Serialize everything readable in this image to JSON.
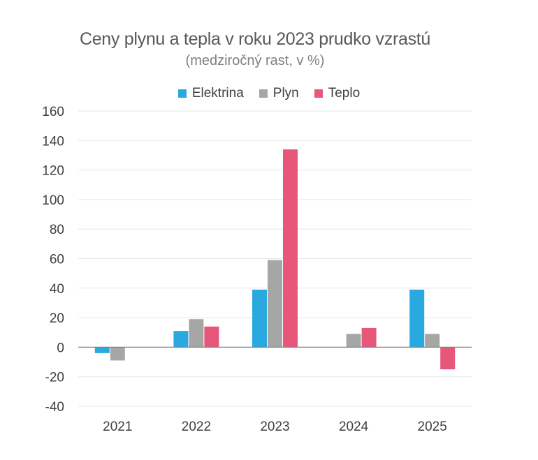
{
  "colors": {
    "elektrina": "#29a9e0",
    "plyn": "#a6a6a6",
    "teplo": "#e6577a",
    "grid": "#e6e6e6",
    "axis": "#808080",
    "tick_text": "#404040"
  },
  "chart_data": {
    "type": "bar",
    "title": "Ceny plynu a tepla v roku 2023 prudko vzrastú",
    "subtitle": "(medziročný rast, v %)",
    "xlabel": "",
    "ylabel": "",
    "ylim": [
      -40,
      160
    ],
    "yticks": [
      -40,
      -20,
      0,
      20,
      40,
      60,
      80,
      100,
      120,
      140,
      160
    ],
    "ytick_labels": [
      "-40",
      "-20",
      "0",
      "20",
      "40",
      "60",
      "80",
      "100",
      "120",
      "140",
      "160"
    ],
    "grid": true,
    "legend_position": "top-center",
    "categories": [
      "2021",
      "2022",
      "2023",
      "2024",
      "2025"
    ],
    "series": [
      {
        "name": "Elektrina",
        "color_key": "elektrina",
        "values": [
          -4,
          11,
          39,
          0,
          39
        ]
      },
      {
        "name": "Plyn",
        "color_key": "plyn",
        "values": [
          -9,
          19,
          59,
          9,
          9
        ]
      },
      {
        "name": "Teplo",
        "color_key": "teplo",
        "values": [
          0,
          14,
          134,
          13,
          -15
        ]
      }
    ]
  }
}
